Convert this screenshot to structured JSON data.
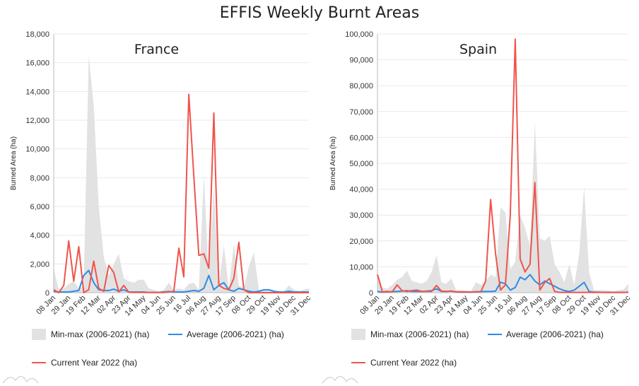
{
  "title": "EFFIS Weekly Burnt Areas",
  "chart_data": [
    {
      "type": "line",
      "country": "France",
      "ylabel": "Burned Area (ha)",
      "ylim": [
        0,
        18000
      ],
      "yticks": [
        0,
        2000,
        4000,
        6000,
        8000,
        10000,
        12000,
        14000,
        16000,
        18000
      ],
      "ytick_labels": [
        "0",
        "2,000",
        "4,000",
        "6,000",
        "8,000",
        "10,000",
        "12,000",
        "14,000",
        "16,000",
        "18,000"
      ],
      "xtick_labels": [
        "08 Jan",
        "29 Jan",
        "19 Feb",
        "12 Mar",
        "02 Apr",
        "23 Apr",
        "14 May",
        "04 Jun",
        "25 Jun",
        "16 Jul",
        "06 Aug",
        "27 Aug",
        "17 Sep",
        "08 Oct",
        "29 Oct",
        "19 Nov",
        "10 Dec",
        "31 Dec"
      ],
      "legend": [
        "Min-max (2006-2021) (ha)",
        "Average (2006-2021) (ha)",
        "Current Year 2022 (ha)"
      ],
      "minmax_max": [
        1700,
        200,
        300,
        600,
        800,
        300,
        500,
        16500,
        13000,
        6000,
        2500,
        1200,
        2000,
        2700,
        1000,
        800,
        700,
        900,
        900,
        300,
        200,
        100,
        200,
        700,
        200,
        300,
        200,
        600,
        700,
        200,
        8200,
        1200,
        7300,
        500,
        3300,
        300,
        3400,
        500,
        300,
        1800,
        2800,
        200,
        200,
        200,
        100,
        100,
        100,
        500,
        200,
        100,
        200,
        300
      ],
      "average": [
        100,
        50,
        50,
        50,
        100,
        150,
        1200,
        1550,
        700,
        200,
        150,
        150,
        250,
        100,
        200,
        50,
        50,
        50,
        50,
        20,
        20,
        20,
        50,
        80,
        50,
        50,
        50,
        100,
        150,
        100,
        300,
        1200,
        200,
        500,
        700,
        200,
        100,
        300,
        200,
        100,
        50,
        100,
        200,
        200,
        100,
        50,
        50,
        100,
        50,
        50,
        50,
        50
      ],
      "current": [
        200,
        0,
        500,
        3600,
        800,
        3200,
        0,
        200,
        2200,
        300,
        100,
        1900,
        1400,
        50,
        500,
        30,
        20,
        20,
        20,
        10,
        10,
        10,
        10,
        50,
        100,
        3100,
        1100,
        13800,
        8100,
        2600,
        2700,
        1700,
        12500,
        500,
        300,
        200,
        1000,
        3500,
        200,
        0,
        0,
        0,
        0,
        0,
        0,
        0,
        0,
        0,
        0,
        0,
        0,
        0
      ]
    },
    {
      "type": "line",
      "country": "Spain",
      "ylabel": "Burned Area (ha)",
      "ylim": [
        0,
        100000
      ],
      "yticks": [
        0,
        10000,
        20000,
        30000,
        40000,
        50000,
        60000,
        70000,
        80000,
        90000,
        100000
      ],
      "ytick_labels": [
        "0",
        "10,000",
        "20,000",
        "30,000",
        "40,000",
        "50,000",
        "60,000",
        "70,000",
        "80,000",
        "90,000",
        "100,000"
      ],
      "xtick_labels": [
        "08 Jan",
        "29 Jan",
        "19 Feb",
        "12 Mar",
        "02 Apr",
        "23 Apr",
        "14 May",
        "04 Jun",
        "25 Jun",
        "16 Jul",
        "06 Aug",
        "27 Aug",
        "17 Sep",
        "08 Oct",
        "29 Oct",
        "19 Nov",
        "10 Dec",
        "31 Dec"
      ],
      "legend": [
        "Min-max (2006-2021) (ha)",
        "Average (2006-2021) (ha)",
        "Current Year 2022 (ha)"
      ],
      "minmax_max": [
        8000,
        2000,
        1500,
        3000,
        5000,
        6000,
        8500,
        4500,
        4000,
        3500,
        4500,
        8000,
        14500,
        4000,
        3500,
        5500,
        1000,
        1000,
        800,
        500,
        4000,
        3000,
        4500,
        7000,
        6000,
        33000,
        31000,
        9000,
        12000,
        30000,
        25000,
        18000,
        66000,
        21000,
        20000,
        22000,
        11000,
        8000,
        4000,
        11000,
        3000,
        15000,
        41000,
        8000,
        1000,
        1000,
        1000,
        800,
        500,
        1000,
        1200,
        3500
      ],
      "average": [
        500,
        200,
        300,
        400,
        500,
        600,
        800,
        500,
        500,
        500,
        600,
        800,
        1500,
        500,
        500,
        600,
        300,
        200,
        200,
        200,
        400,
        400,
        500,
        500,
        600,
        4000,
        3500,
        1000,
        2000,
        6000,
        5000,
        7000,
        4500,
        3000,
        4500,
        3500,
        2500,
        1500,
        800,
        500,
        1000,
        2500,
        4000,
        500,
        200,
        200,
        100,
        100,
        100,
        100,
        100,
        200
      ],
      "current": [
        7000,
        300,
        500,
        300,
        3000,
        800,
        500,
        800,
        1000,
        500,
        500,
        500,
        2800,
        600,
        500,
        600,
        300,
        300,
        300,
        300,
        300,
        300,
        4500,
        36000,
        15000,
        1000,
        3000,
        30000,
        98000,
        13000,
        8000,
        11000,
        42500,
        1000,
        4000,
        5500,
        500,
        100,
        100,
        100,
        100,
        100,
        100,
        100,
        100,
        100,
        100,
        100,
        100,
        100,
        100,
        100
      ]
    }
  ],
  "colors": {
    "minmax": "#e2e2e2",
    "average": "#2f8be6",
    "current": "#f0544d",
    "grid": "#e9e9e9",
    "axis": "#bbbbbb"
  }
}
